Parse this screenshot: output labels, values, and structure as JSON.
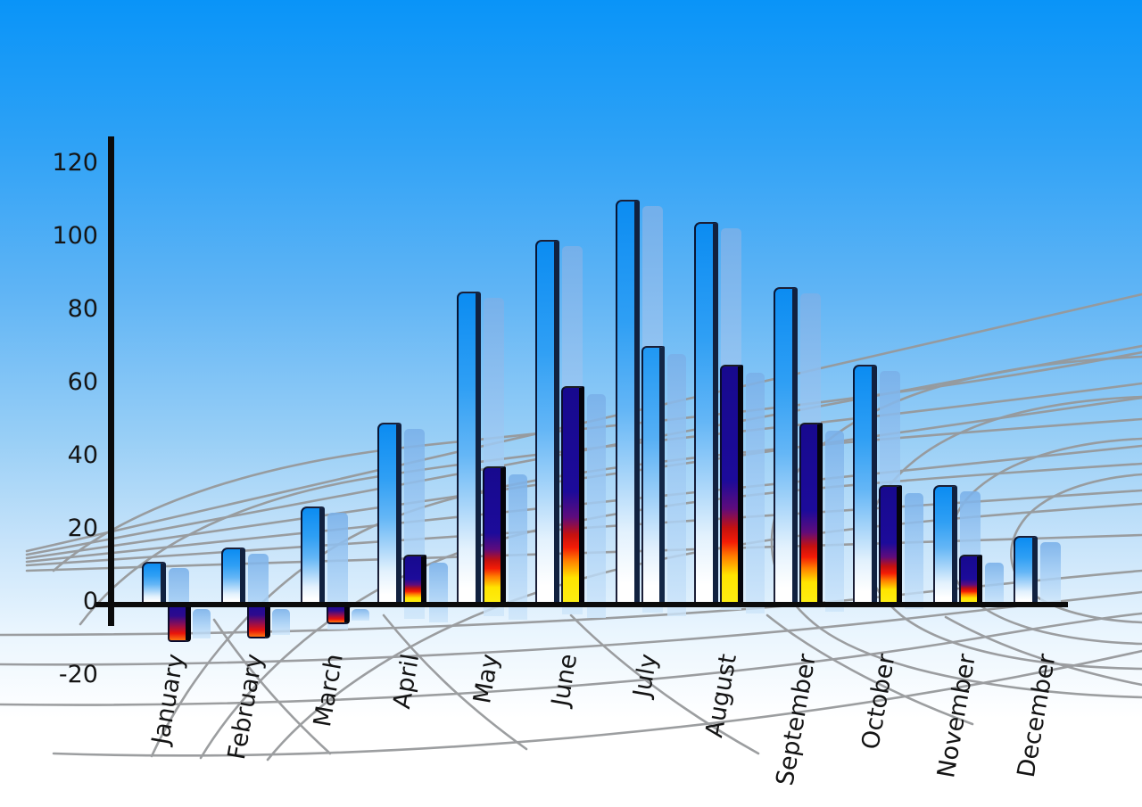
{
  "chart_data": {
    "type": "bar",
    "title": "",
    "categories": [
      "January",
      "February",
      "March",
      "April",
      "May",
      "June",
      "July",
      "August",
      "September",
      "October",
      "November",
      "December"
    ],
    "series": [
      {
        "name": "blue",
        "values": [
          11,
          15,
          26,
          49,
          85,
          99,
          110,
          104,
          86,
          65,
          32,
          18
        ]
      },
      {
        "name": "rainbow",
        "values": [
          -10,
          -9,
          -5,
          13,
          37,
          59,
          70,
          65,
          49,
          32,
          13,
          null
        ]
      }
    ],
    "front_bar_styles": [
      "rainbow",
      "rainbow",
      "rainbow",
      "rainbow",
      "rainbow",
      "rainbow",
      "blue",
      "rainbow",
      "rainbow",
      "rainbow",
      "rainbow",
      null
    ],
    "xlabel": "",
    "ylabel": "",
    "ylim": [
      -20,
      120
    ],
    "yticks": [
      120,
      100,
      80,
      60,
      40,
      20,
      0,
      -20
    ],
    "y_tick_labels": [
      "120",
      "100",
      "80",
      "60",
      "40",
      "20",
      "0",
      "-20"
    ],
    "grid": "gray perspective web backdrop, no plot gridlines",
    "legend": "none"
  },
  "colors": {
    "sky_top": "#0994f8",
    "sky_bottom": "#ffffff",
    "bar_blue_top": "#0b8cf2",
    "bar_blue_bottom": "#ffffff",
    "rainbow_navy": "#1c0b9a",
    "rainbow_red": "#f31c06",
    "rainbow_yellow": "#ffe400",
    "shadow_blue": "#a2ccf4",
    "grid_gray": "#97999b",
    "axis_black": "#0b0b0b",
    "label_text": "#141414"
  }
}
